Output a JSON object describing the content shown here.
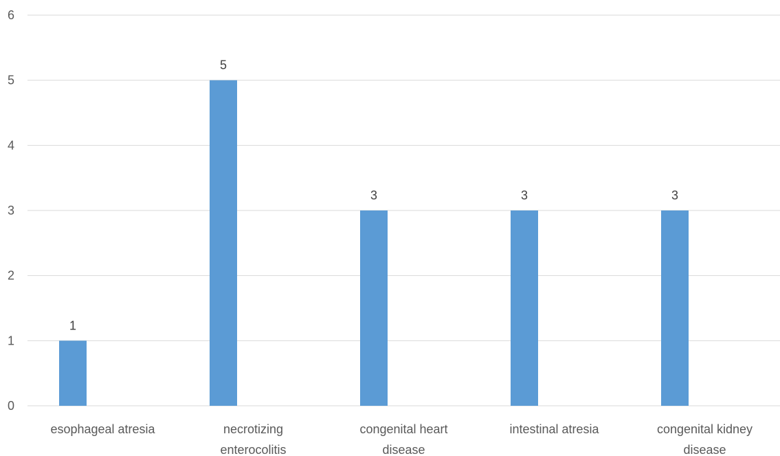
{
  "chart_data": {
    "type": "bar",
    "categories": [
      [
        "esophageal atresia"
      ],
      [
        "necrotizing",
        "enterocolitis"
      ],
      [
        "congenital heart",
        "disease"
      ],
      [
        "intestinal atresia"
      ],
      [
        "congenital kidney",
        "disease"
      ]
    ],
    "series": [
      {
        "values": [
          1,
          5,
          3,
          3,
          3
        ],
        "color": "#5b9bd5"
      }
    ],
    "data_labels": [
      "1",
      "5",
      "3",
      "3",
      "3"
    ],
    "ylim": [
      0,
      6
    ],
    "yticks": [
      "0",
      "1",
      "2",
      "3",
      "4",
      "5",
      "6"
    ],
    "grid": true,
    "legend": "none",
    "title": "",
    "xlabel": "",
    "ylabel": ""
  }
}
